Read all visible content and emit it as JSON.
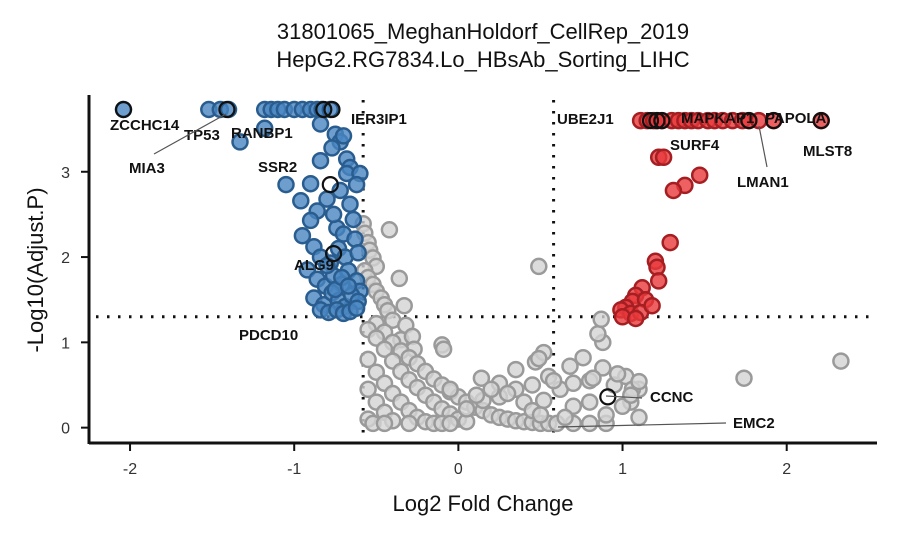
{
  "chart_data": {
    "type": "scatter",
    "title": "31801065_MeghanHoldorf_CellRep_2019",
    "subtitle": "HepG2.RG7834.Lo_HBsAb_Sorting_LIHC",
    "xlabel": "Log2 Fold Change",
    "ylabel": "-Log10(Adjust.P)",
    "xlim": [
      -2.25,
      2.55
    ],
    "ylim": [
      -0.18,
      3.9
    ],
    "x_ticks": [
      -2,
      -1,
      0,
      1,
      2
    ],
    "x_tick_labels": [
      "-2",
      "-1",
      "0",
      "1",
      "2"
    ],
    "y_ticks": [
      0,
      1,
      2,
      3
    ],
    "y_tick_labels": [
      "0",
      "1",
      "2",
      "3"
    ],
    "grid": false,
    "legend": "none",
    "thresholds": {
      "fc_left": -0.58,
      "fc_right": 0.58,
      "p_line": 1.3
    },
    "colors": {
      "down_fill": "#4a86c0",
      "down_stroke": "#2a5d8f",
      "up_fill": "#e8393c",
      "up_stroke": "#a51e22",
      "ns_fill": "#d3d3d3",
      "ns_stroke": "#9a9a9a",
      "highlight_stroke": "#111111"
    },
    "series": [
      {
        "group": "down",
        "points": [
          [
            -2.04,
            3.73
          ],
          [
            -1.52,
            3.73
          ],
          [
            -1.45,
            3.73
          ],
          [
            -1.4,
            3.73
          ],
          [
            -1.18,
            3.73
          ],
          [
            -1.14,
            3.73
          ],
          [
            -1.1,
            3.73
          ],
          [
            -1.06,
            3.73
          ],
          [
            -1.0,
            3.73
          ],
          [
            -0.95,
            3.73
          ],
          [
            -0.9,
            3.73
          ],
          [
            -0.86,
            3.73
          ],
          [
            -0.83,
            3.73
          ],
          [
            -0.78,
            3.73
          ],
          [
            -1.33,
            3.35
          ],
          [
            -1.18,
            3.51
          ],
          [
            -0.84,
            3.56
          ],
          [
            -0.75,
            3.44
          ],
          [
            -0.72,
            3.35
          ],
          [
            -0.68,
            3.15
          ],
          [
            -0.66,
            3.05
          ],
          [
            -0.7,
            3.42
          ],
          [
            -0.77,
            3.28
          ],
          [
            -0.84,
            3.13
          ],
          [
            -0.68,
            2.98
          ],
          [
            -0.9,
            2.86
          ],
          [
            -1.05,
            2.85
          ],
          [
            -0.96,
            2.66
          ],
          [
            -0.6,
            2.98
          ],
          [
            -0.62,
            2.85
          ],
          [
            -0.86,
            2.54
          ],
          [
            -0.9,
            2.43
          ],
          [
            -0.74,
            2.34
          ],
          [
            -0.7,
            2.27
          ],
          [
            -0.76,
            2.5
          ],
          [
            -0.8,
            2.68
          ],
          [
            -0.66,
            2.62
          ],
          [
            -0.72,
            2.78
          ],
          [
            -0.64,
            2.44
          ],
          [
            -0.95,
            2.25
          ],
          [
            -0.88,
            2.12
          ],
          [
            -0.84,
            2.0
          ],
          [
            -0.78,
            1.93
          ],
          [
            -0.73,
            2.1
          ],
          [
            -0.69,
            2.0
          ],
          [
            -0.63,
            2.21
          ],
          [
            -0.61,
            2.05
          ],
          [
            -0.92,
            1.85
          ],
          [
            -0.86,
            1.74
          ],
          [
            -0.81,
            1.66
          ],
          [
            -0.76,
            1.78
          ],
          [
            -0.71,
            1.68
          ],
          [
            -0.67,
            1.84
          ],
          [
            -0.62,
            1.72
          ],
          [
            -0.6,
            1.6
          ],
          [
            -0.88,
            1.52
          ],
          [
            -0.82,
            1.44
          ],
          [
            -0.77,
            1.58
          ],
          [
            -0.73,
            1.49
          ],
          [
            -0.69,
            1.42
          ],
          [
            -0.65,
            1.55
          ],
          [
            -0.61,
            1.48
          ],
          [
            -0.84,
            1.38
          ],
          [
            -0.79,
            1.35
          ],
          [
            -0.74,
            1.38
          ],
          [
            -0.7,
            1.34
          ],
          [
            -0.66,
            1.36
          ],
          [
            -0.62,
            1.4
          ],
          [
            -0.75,
            1.62
          ],
          [
            -0.8,
            1.9
          ],
          [
            -0.71,
            1.76
          ],
          [
            -0.67,
            1.66
          ]
        ]
      },
      {
        "group": "up",
        "points": [
          [
            1.11,
            3.6
          ],
          [
            1.15,
            3.6
          ],
          [
            1.19,
            3.6
          ],
          [
            1.21,
            3.6
          ],
          [
            1.24,
            3.6
          ],
          [
            1.3,
            3.6
          ],
          [
            1.34,
            3.6
          ],
          [
            1.38,
            3.6
          ],
          [
            1.42,
            3.6
          ],
          [
            1.46,
            3.6
          ],
          [
            1.52,
            3.6
          ],
          [
            1.56,
            3.6
          ],
          [
            1.61,
            3.6
          ],
          [
            1.67,
            3.6
          ],
          [
            1.73,
            3.6
          ],
          [
            1.77,
            3.6
          ],
          [
            1.83,
            3.6
          ],
          [
            1.92,
            3.6
          ],
          [
            2.21,
            3.6
          ],
          [
            1.22,
            3.17
          ],
          [
            1.25,
            3.17
          ],
          [
            1.47,
            2.96
          ],
          [
            1.38,
            2.84
          ],
          [
            1.31,
            2.78
          ],
          [
            1.29,
            2.17
          ],
          [
            1.2,
            1.95
          ],
          [
            1.21,
            1.88
          ],
          [
            1.22,
            1.72
          ],
          [
            1.12,
            1.64
          ],
          [
            1.08,
            1.55
          ],
          [
            1.06,
            1.48
          ],
          [
            1.14,
            1.5
          ],
          [
            1.02,
            1.41
          ],
          [
            0.99,
            1.38
          ],
          [
            1.05,
            1.34
          ],
          [
            1.0,
            1.3
          ],
          [
            1.11,
            1.35
          ],
          [
            1.18,
            1.43
          ],
          [
            1.08,
            1.28
          ]
        ]
      },
      {
        "group": "ns",
        "points": [
          [
            -0.58,
            2.39
          ],
          [
            -0.57,
            2.28
          ],
          [
            -0.55,
            2.17
          ],
          [
            -0.54,
            2.08
          ],
          [
            -0.52,
            1.99
          ],
          [
            -0.5,
            1.89
          ],
          [
            -0.57,
            1.84
          ],
          [
            -0.55,
            1.76
          ],
          [
            -0.52,
            1.68
          ],
          [
            -0.5,
            1.6
          ],
          [
            -0.47,
            1.52
          ],
          [
            -0.45,
            1.44
          ],
          [
            -0.43,
            1.37
          ],
          [
            -0.42,
            2.32
          ],
          [
            -0.36,
            1.75
          ],
          [
            -0.33,
            1.43
          ],
          [
            -0.4,
            1.26
          ],
          [
            -0.32,
            1.2
          ],
          [
            -0.35,
            1.03
          ],
          [
            -0.28,
            1.07
          ],
          [
            -0.1,
            0.97
          ],
          [
            -0.09,
            0.92
          ],
          [
            -0.27,
            0.92
          ],
          [
            -0.5,
            1.22
          ],
          [
            -0.45,
            1.12
          ],
          [
            -0.4,
            1.0
          ],
          [
            -0.35,
            0.9
          ],
          [
            -0.3,
            0.82
          ],
          [
            -0.25,
            0.75
          ],
          [
            -0.2,
            0.66
          ],
          [
            -0.15,
            0.57
          ],
          [
            -0.1,
            0.5
          ],
          [
            -0.05,
            0.42
          ],
          [
            0.0,
            0.36
          ],
          [
            0.05,
            0.3
          ],
          [
            0.1,
            0.24
          ],
          [
            0.15,
            0.2
          ],
          [
            0.2,
            0.15
          ],
          [
            0.25,
            0.12
          ],
          [
            0.3,
            0.1
          ],
          [
            0.35,
            0.08
          ],
          [
            0.4,
            0.07
          ],
          [
            0.45,
            0.06
          ],
          [
            0.5,
            0.05
          ],
          [
            0.55,
            0.05
          ],
          [
            0.6,
            0.05
          ],
          [
            0.7,
            0.05
          ],
          [
            0.8,
            0.05
          ],
          [
            0.9,
            0.05
          ],
          [
            -0.55,
            1.15
          ],
          [
            -0.5,
            1.05
          ],
          [
            -0.45,
            0.92
          ],
          [
            -0.4,
            0.78
          ],
          [
            -0.35,
            0.66
          ],
          [
            -0.3,
            0.56
          ],
          [
            -0.25,
            0.47
          ],
          [
            -0.2,
            0.38
          ],
          [
            -0.15,
            0.3
          ],
          [
            -0.1,
            0.22
          ],
          [
            -0.05,
            0.16
          ],
          [
            0.0,
            0.1
          ],
          [
            0.05,
            0.07
          ],
          [
            -0.55,
            0.8
          ],
          [
            -0.5,
            0.65
          ],
          [
            -0.45,
            0.52
          ],
          [
            -0.4,
            0.4
          ],
          [
            -0.35,
            0.3
          ],
          [
            -0.3,
            0.2
          ],
          [
            -0.25,
            0.12
          ],
          [
            -0.2,
            0.07
          ],
          [
            -0.15,
            0.05
          ],
          [
            -0.1,
            0.05
          ],
          [
            -0.05,
            0.05
          ],
          [
            -0.55,
            0.45
          ],
          [
            -0.5,
            0.3
          ],
          [
            -0.45,
            0.18
          ],
          [
            -0.4,
            0.08
          ],
          [
            -0.55,
            0.1
          ],
          [
            -0.52,
            0.05
          ],
          [
            -0.3,
            0.05
          ],
          [
            -0.45,
            0.05
          ],
          [
            -0.05,
            0.45
          ],
          [
            0.05,
            0.22
          ],
          [
            0.15,
            0.32
          ],
          [
            0.25,
            0.36
          ],
          [
            0.35,
            0.45
          ],
          [
            0.45,
            0.5
          ],
          [
            0.52,
            0.32
          ],
          [
            0.55,
            0.6
          ],
          [
            0.62,
            0.45
          ],
          [
            0.7,
            0.52
          ],
          [
            0.8,
            0.55
          ],
          [
            0.88,
            0.7
          ],
          [
            0.95,
            0.5
          ],
          [
            1.02,
            0.6
          ],
          [
            1.1,
            0.45
          ],
          [
            1.05,
            0.3
          ],
          [
            1.0,
            0.25
          ],
          [
            1.1,
            0.12
          ],
          [
            0.9,
            0.15
          ],
          [
            0.8,
            0.3
          ],
          [
            0.7,
            0.25
          ],
          [
            0.65,
            0.12
          ],
          [
            0.25,
            0.52
          ],
          [
            0.35,
            0.68
          ],
          [
            0.47,
            0.77
          ],
          [
            0.52,
            0.88
          ],
          [
            0.49,
            0.81
          ],
          [
            0.58,
            0.55
          ],
          [
            0.68,
            0.72
          ],
          [
            0.76,
            0.82
          ],
          [
            0.82,
            0.58
          ],
          [
            0.97,
            0.63
          ],
          [
            0.88,
            1.0
          ],
          [
            0.85,
            1.1
          ],
          [
            0.87,
            1.27
          ],
          [
            1.06,
            0.45
          ],
          [
            1.1,
            0.54
          ],
          [
            1.05,
            0.38
          ],
          [
            0.14,
            0.58
          ],
          [
            0.2,
            0.45
          ],
          [
            0.11,
            0.38
          ],
          [
            0.3,
            0.4
          ],
          [
            0.4,
            0.3
          ],
          [
            0.45,
            0.2
          ],
          [
            0.5,
            0.15
          ],
          [
            0.49,
            1.89
          ],
          [
            1.74,
            0.58
          ],
          [
            2.33,
            0.78
          ]
        ]
      }
    ],
    "highlighted": [
      [
        -2.04,
        3.73
      ],
      [
        -1.41,
        3.73
      ],
      [
        -0.82,
        3.73
      ],
      [
        -0.77,
        3.73
      ],
      [
        -0.78,
        2.85
      ],
      [
        -0.76,
        2.04
      ],
      [
        1.17,
        3.6
      ],
      [
        1.21,
        3.6
      ],
      [
        1.24,
        3.6
      ],
      [
        1.77,
        3.6
      ],
      [
        1.92,
        3.6
      ],
      [
        2.21,
        3.6
      ],
      [
        0.91,
        0.36
      ]
    ],
    "annotations": [
      {
        "text": "ZCCHC14",
        "x": -2.04,
        "y": 3.73
      },
      {
        "text": "TP53",
        "x": -1.42,
        "y": 3.73
      },
      {
        "text": "RANBP1",
        "x": -1.12,
        "y": 3.73
      },
      {
        "text": "MIA3",
        "x": -1.1,
        "y": 3.73
      },
      {
        "text": "SSR2",
        "x": -0.77,
        "y": 2.85
      },
      {
        "text": "ALG9",
        "x": -0.76,
        "y": 2.04
      },
      {
        "text": "IER3IP1",
        "x": -0.77,
        "y": 3.73
      },
      {
        "text": "PDCD10",
        "x": -0.62,
        "y": 1.16
      },
      {
        "text": "UBE2J1",
        "x": 1.17,
        "y": 3.6
      },
      {
        "text": "MAPKAP1",
        "x": 1.24,
        "y": 3.6
      },
      {
        "text": "PAPOLA",
        "x": 1.92,
        "y": 3.6
      },
      {
        "text": "SURF4",
        "x": 1.21,
        "y": 3.6
      },
      {
        "text": "MLST8",
        "x": 2.21,
        "y": 3.6
      },
      {
        "text": "LMAN1",
        "x": 1.77,
        "y": 3.6
      },
      {
        "text": "CCNC",
        "x": 0.91,
        "y": 0.36
      },
      {
        "text": "EMC2",
        "x": 0.6,
        "y": 0.0
      }
    ]
  }
}
